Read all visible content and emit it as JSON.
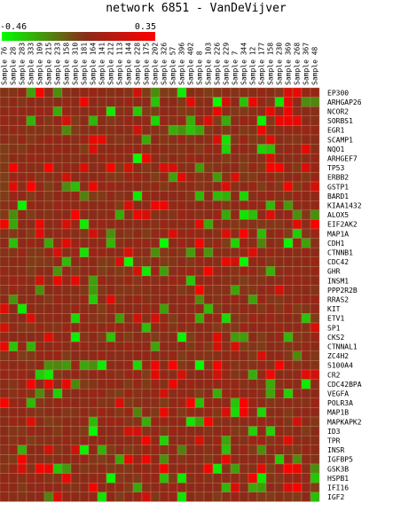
{
  "chart_data": {
    "type": "heatmap",
    "title": "network 6851 - VanDeVijver",
    "scale": {
      "min_label": "-0.46",
      "max_label": "0.35",
      "min": -0.46,
      "max": 0.35
    },
    "colors": {
      "low": "#00ff00",
      "mid": "#8b2a1a",
      "high": "#ff0000",
      "grid": "#b08a5a"
    },
    "columns": [
      "Sample 76",
      "Sample 28",
      "Sample 283",
      "Sample 333",
      "Sample 109",
      "Sample 215",
      "Sample 233",
      "Sample 158",
      "Sample 310",
      "Sample 181",
      "Sample 164",
      "Sample 141",
      "Sample 212",
      "Sample 113",
      "Sample 144",
      "Sample 228",
      "Sample 175",
      "Sample 202",
      "Sample 326",
      "Sample 57",
      "Sample 396",
      "Sample 402",
      "Sample 8",
      "Sample 103",
      "Sample 226",
      "Sample 229",
      "Sample 7",
      "Sample 344",
      "Sample 12",
      "Sample 177",
      "Sample 158",
      "Sample 230",
      "Sample 369",
      "Sample 268",
      "Sample 367",
      "Sample 48"
    ],
    "rows": [
      "EP300",
      "ARHGAP26",
      "NCOR2",
      "SORBS1",
      "EGR1",
      "SCAMP1",
      "NQO1",
      "ARHGEF7",
      "TP53",
      "ERBB2",
      "GSTP1",
      "BARD1",
      "KIAA1432",
      "ALOX5",
      "EIF2AK2",
      "MAP1A",
      "CDH1",
      "CTNNB1",
      "CDC42",
      "GHR",
      "INSM1",
      "PPP2R2B",
      "RRAS2",
      "KIT",
      "ETV1",
      "SP1",
      "CKS2",
      "CTNNAL1",
      "ZC4H2",
      "S100A4",
      "CR2",
      "CDC42BPA",
      "VEGFA",
      "POLR3A",
      "MAP1B",
      "MAPKAPK2",
      "ID3",
      "TPR",
      "INSR",
      "IGFBP5",
      "GSK3B",
      "HSPB1",
      "IFI16",
      "IGF2"
    ],
    "values_note": "",
    "values": []
  }
}
